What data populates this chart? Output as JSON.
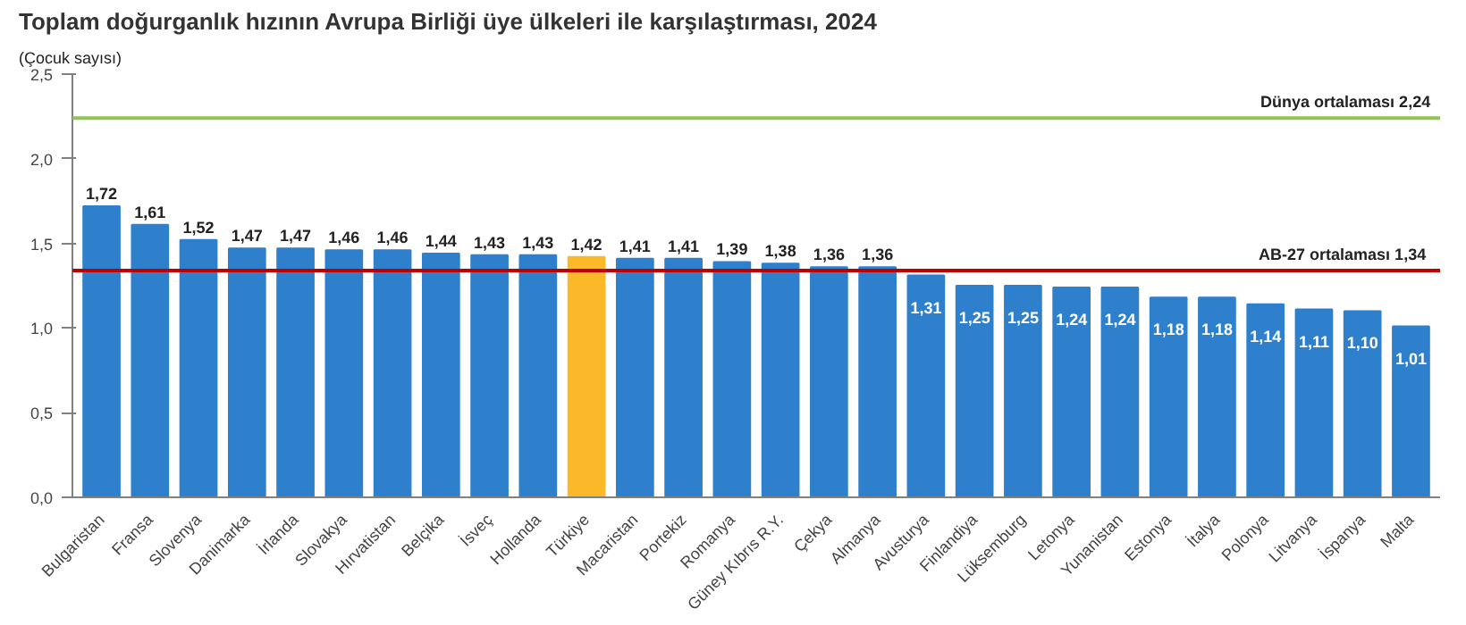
{
  "chart_data": {
    "type": "bar",
    "title": "Toplam doğurganlık hızının Avrupa Birliği üye ülkeleri ile karşılaştırması, 2024",
    "ylabel": "(Çocuk sayısı)",
    "categories": [
      "Bulgaristan",
      "Fransa",
      "Slovenya",
      "Danimarka",
      "İrlanda",
      "Slovakya",
      "Hırvatistan",
      "Belçika",
      "İsveç",
      "Hollanda",
      "Türkiye",
      "Macaristan",
      "Portekiz",
      "Romanya",
      "Güney Kıbrıs R.Y.",
      "Çekya",
      "Almanya",
      "Avusturya",
      "Finlandiya",
      "Lüksemburg",
      "Letonya",
      "Yunanistan",
      "Estonya",
      "İtalya",
      "Polonya",
      "Litvanya",
      "İspanya",
      "Malta"
    ],
    "values": [
      1.72,
      1.61,
      1.52,
      1.47,
      1.47,
      1.46,
      1.46,
      1.44,
      1.43,
      1.43,
      1.42,
      1.41,
      1.41,
      1.39,
      1.38,
      1.36,
      1.36,
      1.31,
      1.25,
      1.25,
      1.24,
      1.24,
      1.18,
      1.18,
      1.14,
      1.11,
      1.1,
      1.01
    ],
    "value_labels": [
      "1,72",
      "1,61",
      "1,52",
      "1,47",
      "1,47",
      "1,46",
      "1,46",
      "1,44",
      "1,43",
      "1,43",
      "1,42",
      "1,41",
      "1,41",
      "1,39",
      "1,38",
      "1,36",
      "1,36",
      "1,31",
      "1,25",
      "1,25",
      "1,24",
      "1,24",
      "1,18",
      "1,18",
      "1,14",
      "1,11",
      "1,10",
      "1,01"
    ],
    "colors": [
      "#2f80cc",
      "#2f80cc",
      "#2f80cc",
      "#2f80cc",
      "#2f80cc",
      "#2f80cc",
      "#2f80cc",
      "#2f80cc",
      "#2f80cc",
      "#2f80cc",
      "#fbb829",
      "#2f80cc",
      "#2f80cc",
      "#2f80cc",
      "#2f80cc",
      "#2f80cc",
      "#2f80cc",
      "#2f80cc",
      "#2f80cc",
      "#2f80cc",
      "#2f80cc",
      "#2f80cc",
      "#2f80cc",
      "#2f80cc",
      "#2f80cc",
      "#2f80cc",
      "#2f80cc",
      "#2f80cc"
    ],
    "ylim": [
      0,
      2.5
    ],
    "yticks": [
      {
        "value": 0,
        "label": "0,0"
      },
      {
        "value": 0.5,
        "label": "0,5"
      },
      {
        "value": 1,
        "label": "1,0"
      },
      {
        "value": 1.5,
        "label": "1,5"
      },
      {
        "value": 2,
        "label": "2,0"
      },
      {
        "value": 2.5,
        "label": "2,5"
      }
    ],
    "ref_lines": [
      {
        "axis": "y",
        "value": 2.24,
        "label": "Dünya ortalaması 2,24",
        "color": "#92c353"
      },
      {
        "axis": "y",
        "value": 1.34,
        "label": "AB-27 ortalaması  1,34",
        "color": "#c00000"
      }
    ],
    "grid": false
  }
}
